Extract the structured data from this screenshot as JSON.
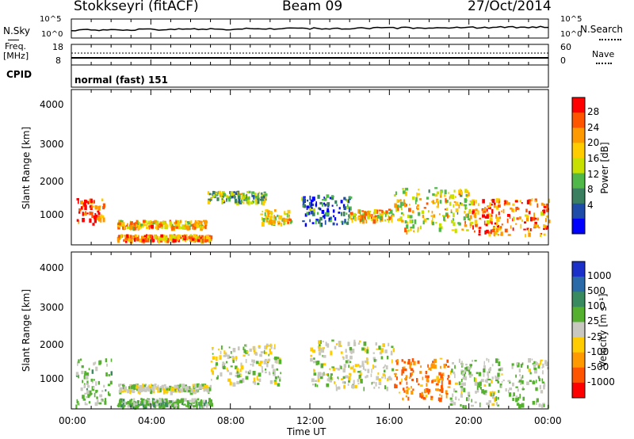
{
  "header": {
    "station": "Stokkseyri (fitACF)",
    "beam": "Beam 09",
    "date": "27/Oct/2014"
  },
  "top_panels": {
    "nsky_label": "N.Sky",
    "nsearch_label": "N.Search",
    "noise_ticks": [
      "10^5",
      "10^0"
    ],
    "freq_label_1": "Freq.",
    "freq_label_2": "[MHz]",
    "freq_ticks": [
      "18",
      "8"
    ],
    "nave_label": "Nave",
    "nave_ticks": [
      "60",
      "0"
    ],
    "cpid_label": "CPID",
    "cpid_value": "normal (fast) 151"
  },
  "power_panel": {
    "ylabel": "Slant Range [km]",
    "yticks": [
      "4000",
      "3000",
      "2000",
      "1000"
    ],
    "colorbar_label": "Power [dB]",
    "colorbar_ticks": [
      "28",
      "24",
      "20",
      "16",
      "12",
      "8",
      "4"
    ],
    "colorbar_colors": [
      "#ff0000",
      "#ff5500",
      "#ff9900",
      "#ffcc00",
      "#c8e000",
      "#4fb848",
      "#3a8060",
      "#1f4ca8",
      "#0000ff"
    ]
  },
  "velocity_panel": {
    "ylabel": "Slant Range [km]",
    "yticks": [
      "4000",
      "3000",
      "2000",
      "1000"
    ],
    "colorbar_label": "Velocity [m s⁻¹]",
    "colorbar_ticks": [
      "1000",
      "500",
      "100",
      "25",
      "-25",
      "-100",
      "-500",
      "-1000"
    ],
    "colorbar_colors": [
      "#1a30c8",
      "#2a6aa8",
      "#3a8a60",
      "#55b030",
      "#c8c8c0",
      "#ffcc00",
      "#ff9900",
      "#ff5500",
      "#ff0000"
    ]
  },
  "time_axis": {
    "ticks": [
      "00:00",
      "04:00",
      "08:00",
      "12:00",
      "16:00",
      "20:00",
      "00:00"
    ],
    "label": "Time UT"
  },
  "chart_data": {
    "type": "heatmap",
    "x_range_hours": [
      0,
      24
    ],
    "y_range_km": [
      200,
      4500
    ],
    "power_regions_dB": [
      {
        "t": [
          0.2,
          1.6
        ],
        "r": [
          800,
          1500
        ],
        "v": 26
      },
      {
        "t": [
          2.3,
          6.8
        ],
        "r": [
          700,
          900
        ],
        "v": 20
      },
      {
        "t": [
          2.3,
          7.0
        ],
        "r": [
          350,
          500
        ],
        "v": 22
      },
      {
        "t": [
          6.8,
          9.8
        ],
        "r": [
          1400,
          1700
        ],
        "v": 14
      },
      {
        "t": [
          9.5,
          11.0
        ],
        "r": [
          800,
          1200
        ],
        "v": 18
      },
      {
        "t": [
          11.5,
          14.0
        ],
        "r": [
          800,
          1600
        ],
        "v": 8
      },
      {
        "t": [
          14.0,
          16.2
        ],
        "r": [
          900,
          1200
        ],
        "v": 20
      },
      {
        "t": [
          16.2,
          20.0
        ],
        "r": [
          600,
          1800
        ],
        "v": 18
      },
      {
        "t": [
          20.0,
          24.0
        ],
        "r": [
          500,
          1500
        ],
        "v": 24
      }
    ],
    "velocity_regions_ms": [
      {
        "t": [
          0.2,
          2.0
        ],
        "r": [
          300,
          1600
        ],
        "v": 150
      },
      {
        "t": [
          2.3,
          7.0
        ],
        "r": [
          700,
          900
        ],
        "v": 0
      },
      {
        "t": [
          2.3,
          7.0
        ],
        "r": [
          300,
          500
        ],
        "v": 200
      },
      {
        "t": [
          7.0,
          10.5
        ],
        "r": [
          900,
          2000
        ],
        "v": 0
      },
      {
        "t": [
          12.0,
          16.2
        ],
        "r": [
          800,
          2100
        ],
        "v": 0
      },
      {
        "t": [
          16.2,
          19.0
        ],
        "r": [
          500,
          1600
        ],
        "v": -600
      },
      {
        "t": [
          19.0,
          24.0
        ],
        "r": [
          300,
          1600
        ],
        "v": 100
      }
    ]
  }
}
